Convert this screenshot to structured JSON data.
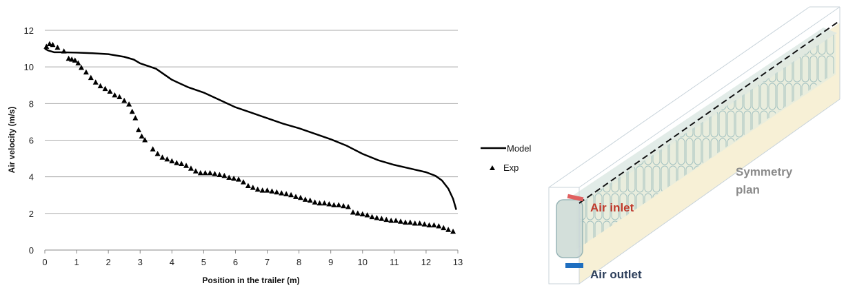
{
  "chart_data": {
    "type": "line",
    "xlabel": "Position in the trailer (m)",
    "ylabel": "Air velocity (m/s)",
    "xlim": [
      0,
      13
    ],
    "ylim": [
      0,
      12
    ],
    "xticks": [
      "0",
      "1",
      "2",
      "3",
      "4",
      "5",
      "6",
      "7",
      "8",
      "9",
      "10",
      "11",
      "12",
      "13"
    ],
    "yticks": [
      "0",
      "2",
      "4",
      "6",
      "8",
      "10",
      "12"
    ],
    "grid": "horizontal",
    "legend_position": "right",
    "series": [
      {
        "name": "Model",
        "style": "line",
        "color": "#000000",
        "x": [
          0,
          0.1,
          0.3,
          0.5,
          1.0,
          1.5,
          2.0,
          2.5,
          2.8,
          3.0,
          3.5,
          4.0,
          4.5,
          5.0,
          5.5,
          6.0,
          6.5,
          7.0,
          7.5,
          8.0,
          8.5,
          9.0,
          9.5,
          10.0,
          10.5,
          11.0,
          11.5,
          12.0,
          12.3,
          12.5,
          12.7,
          12.85,
          12.95
        ],
        "y": [
          11.0,
          10.9,
          10.8,
          10.8,
          10.78,
          10.75,
          10.7,
          10.55,
          10.4,
          10.2,
          9.9,
          9.3,
          8.9,
          8.6,
          8.2,
          7.8,
          7.5,
          7.2,
          6.9,
          6.65,
          6.35,
          6.05,
          5.7,
          5.25,
          4.9,
          4.65,
          4.45,
          4.25,
          4.05,
          3.8,
          3.35,
          2.8,
          2.2
        ]
      },
      {
        "name": "Exp",
        "style": "marker",
        "marker": "triangle",
        "color": "#000000",
        "x": [
          0.05,
          0.15,
          0.25,
          0.4,
          0.6,
          0.75,
          0.85,
          0.95,
          1.05,
          1.15,
          1.3,
          1.45,
          1.6,
          1.75,
          1.9,
          2.05,
          2.2,
          2.35,
          2.5,
          2.65,
          2.75,
          2.85,
          2.95,
          3.05,
          3.15,
          3.4,
          3.55,
          3.7,
          3.85,
          4.0,
          4.15,
          4.3,
          4.45,
          4.6,
          4.75,
          4.9,
          5.05,
          5.2,
          5.35,
          5.5,
          5.65,
          5.8,
          5.95,
          6.1,
          6.25,
          6.4,
          6.55,
          6.7,
          6.85,
          7.0,
          7.15,
          7.3,
          7.45,
          7.6,
          7.75,
          7.9,
          8.05,
          8.2,
          8.35,
          8.5,
          8.65,
          8.8,
          8.95,
          9.1,
          9.25,
          9.4,
          9.55,
          9.7,
          9.85,
          10.0,
          10.15,
          10.3,
          10.45,
          10.6,
          10.75,
          10.9,
          11.05,
          11.2,
          11.35,
          11.5,
          11.65,
          11.8,
          11.95,
          12.1,
          12.25,
          12.4,
          12.55,
          12.7,
          12.85
        ],
        "y": [
          11.1,
          11.25,
          11.2,
          11.05,
          10.85,
          10.45,
          10.4,
          10.35,
          10.2,
          9.95,
          9.7,
          9.4,
          9.15,
          8.95,
          8.8,
          8.65,
          8.45,
          8.35,
          8.15,
          7.95,
          7.55,
          7.2,
          6.55,
          6.2,
          6.0,
          5.5,
          5.25,
          5.05,
          4.95,
          4.85,
          4.75,
          4.7,
          4.6,
          4.45,
          4.3,
          4.2,
          4.2,
          4.2,
          4.15,
          4.1,
          4.05,
          3.95,
          3.9,
          3.85,
          3.7,
          3.5,
          3.4,
          3.3,
          3.25,
          3.25,
          3.2,
          3.15,
          3.1,
          3.05,
          3.0,
          2.9,
          2.85,
          2.75,
          2.7,
          2.6,
          2.55,
          2.55,
          2.5,
          2.45,
          2.45,
          2.4,
          2.35,
          2.05,
          2.0,
          1.95,
          1.9,
          1.8,
          1.75,
          1.7,
          1.65,
          1.6,
          1.6,
          1.55,
          1.5,
          1.5,
          1.45,
          1.45,
          1.4,
          1.35,
          1.35,
          1.3,
          1.2,
          1.1,
          1.0
        ]
      }
    ]
  },
  "diagram": {
    "labels": {
      "symmetry": [
        "Symmetry",
        "plan"
      ],
      "air_inlet": "Air inlet",
      "air_outlet": "Air outlet"
    },
    "colors": {
      "inlet": "#c0392b",
      "inlet_bar": "#e06060",
      "outlet": "#1f6fc0",
      "outlet_text": "#2c3e5a",
      "symmetry_text": "#8a8a8a",
      "plane_fill": "#f7f0d6",
      "box_edge": "#c8d3da",
      "pallet": "#7fa6a9"
    }
  }
}
